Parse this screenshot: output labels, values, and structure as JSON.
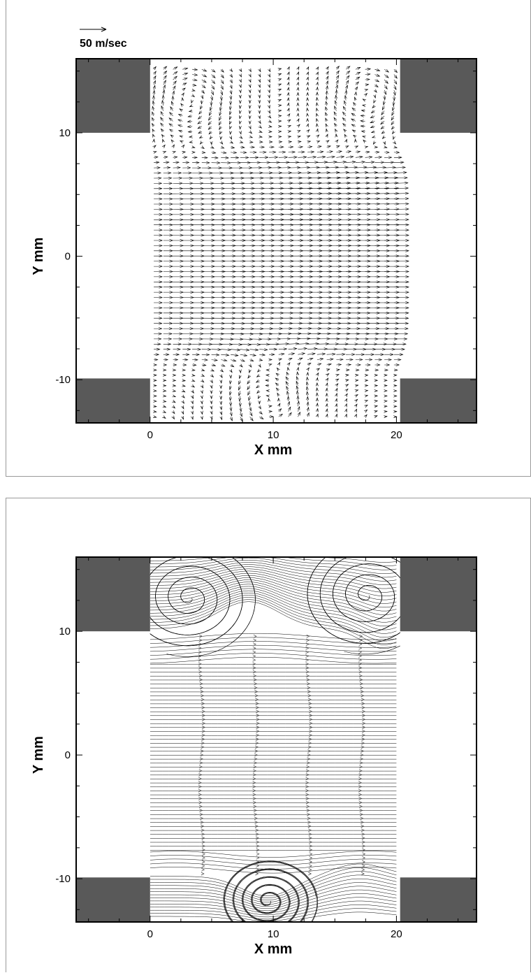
{
  "chart_data": [
    {
      "type": "vector-field",
      "reference_vector": {
        "label": "50 m/sec",
        "magnitude": 50,
        "units": "m/sec"
      },
      "xlabel": "X mm",
      "ylabel": "Y mm",
      "xlim": [
        -6,
        26.5
      ],
      "ylim": [
        -13.5,
        16
      ],
      "x_ticks": [
        0,
        10,
        20
      ],
      "y_ticks": [
        -10,
        0,
        10
      ],
      "x_tick_labels": [
        "0",
        "10",
        "20"
      ],
      "y_tick_labels": [
        "-10",
        "0",
        "10"
      ],
      "walls": [
        {
          "x": [
            -6,
            0
          ],
          "y": [
            10,
            16
          ]
        },
        {
          "x": [
            20.3,
            26.5
          ],
          "y": [
            10,
            16
          ]
        },
        {
          "x": [
            -6,
            0
          ],
          "y": [
            -13.5,
            -9.9
          ]
        },
        {
          "x": [
            20.3,
            26.5
          ],
          "y": [
            -13.5,
            -9.9
          ]
        }
      ],
      "channel_x_range": [
        0,
        20.3
      ],
      "jet_core_y_range": [
        -8.5,
        8.5
      ],
      "jet_max_velocity_ms": 45,
      "vortices": [
        {
          "x": 3.2,
          "y": 12.7
        },
        {
          "x": 17.6,
          "y": 12.9
        },
        {
          "x": 9.6,
          "y": -11.8
        }
      ],
      "wall_color": "#595959"
    },
    {
      "type": "streamlines",
      "xlabel": "X mm",
      "ylabel": "Y mm",
      "xlim": [
        -6,
        26.5
      ],
      "ylim": [
        -13.5,
        16
      ],
      "x_ticks": [
        0,
        10,
        20
      ],
      "y_ticks": [
        -10,
        0,
        10
      ],
      "x_tick_labels": [
        "0",
        "10",
        "20"
      ],
      "y_tick_labels": [
        "-10",
        "0",
        "10"
      ],
      "walls": [
        {
          "x": [
            -6,
            0
          ],
          "y": [
            10,
            16
          ]
        },
        {
          "x": [
            20.3,
            26.5
          ],
          "y": [
            10,
            16
          ]
        },
        {
          "x": [
            -6,
            0
          ],
          "y": [
            -13.5,
            -9.9
          ]
        },
        {
          "x": [
            20.3,
            26.5
          ],
          "y": [
            -13.5,
            -9.9
          ]
        }
      ],
      "vortices": [
        {
          "x": 3.2,
          "y": 12.7
        },
        {
          "x": 17.6,
          "y": 12.9
        },
        {
          "x": 9.6,
          "y": -11.8
        }
      ],
      "arrow_columns_x": [
        4.3,
        8.7,
        13.0,
        17.3
      ],
      "wall_color": "#595959"
    }
  ]
}
